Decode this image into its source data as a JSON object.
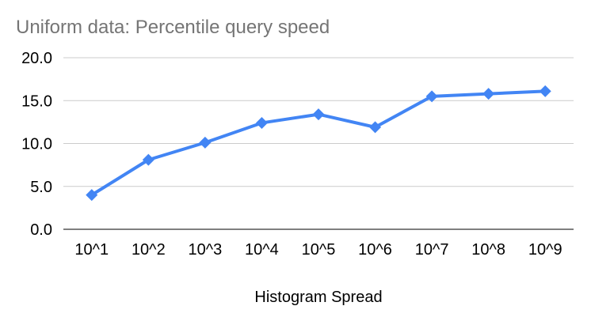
{
  "chart_data": {
    "type": "line",
    "title": "Uniform data: Percentile query speed",
    "xlabel": "Histogram Spread",
    "ylabel": "",
    "categories": [
      "10^1",
      "10^2",
      "10^3",
      "10^4",
      "10^5",
      "10^6",
      "10^7",
      "10^8",
      "10^9"
    ],
    "series": [
      {
        "values": [
          4.0,
          8.1,
          10.1,
          12.4,
          13.4,
          11.9,
          15.5,
          15.8,
          16.1
        ],
        "color": "#4285f4",
        "marker": "diamond"
      }
    ],
    "ylim": [
      0,
      20
    ],
    "yticks": [
      "0.0",
      "5.0",
      "10.0",
      "15.0",
      "20.0"
    ],
    "grid": true,
    "legend": "none"
  }
}
